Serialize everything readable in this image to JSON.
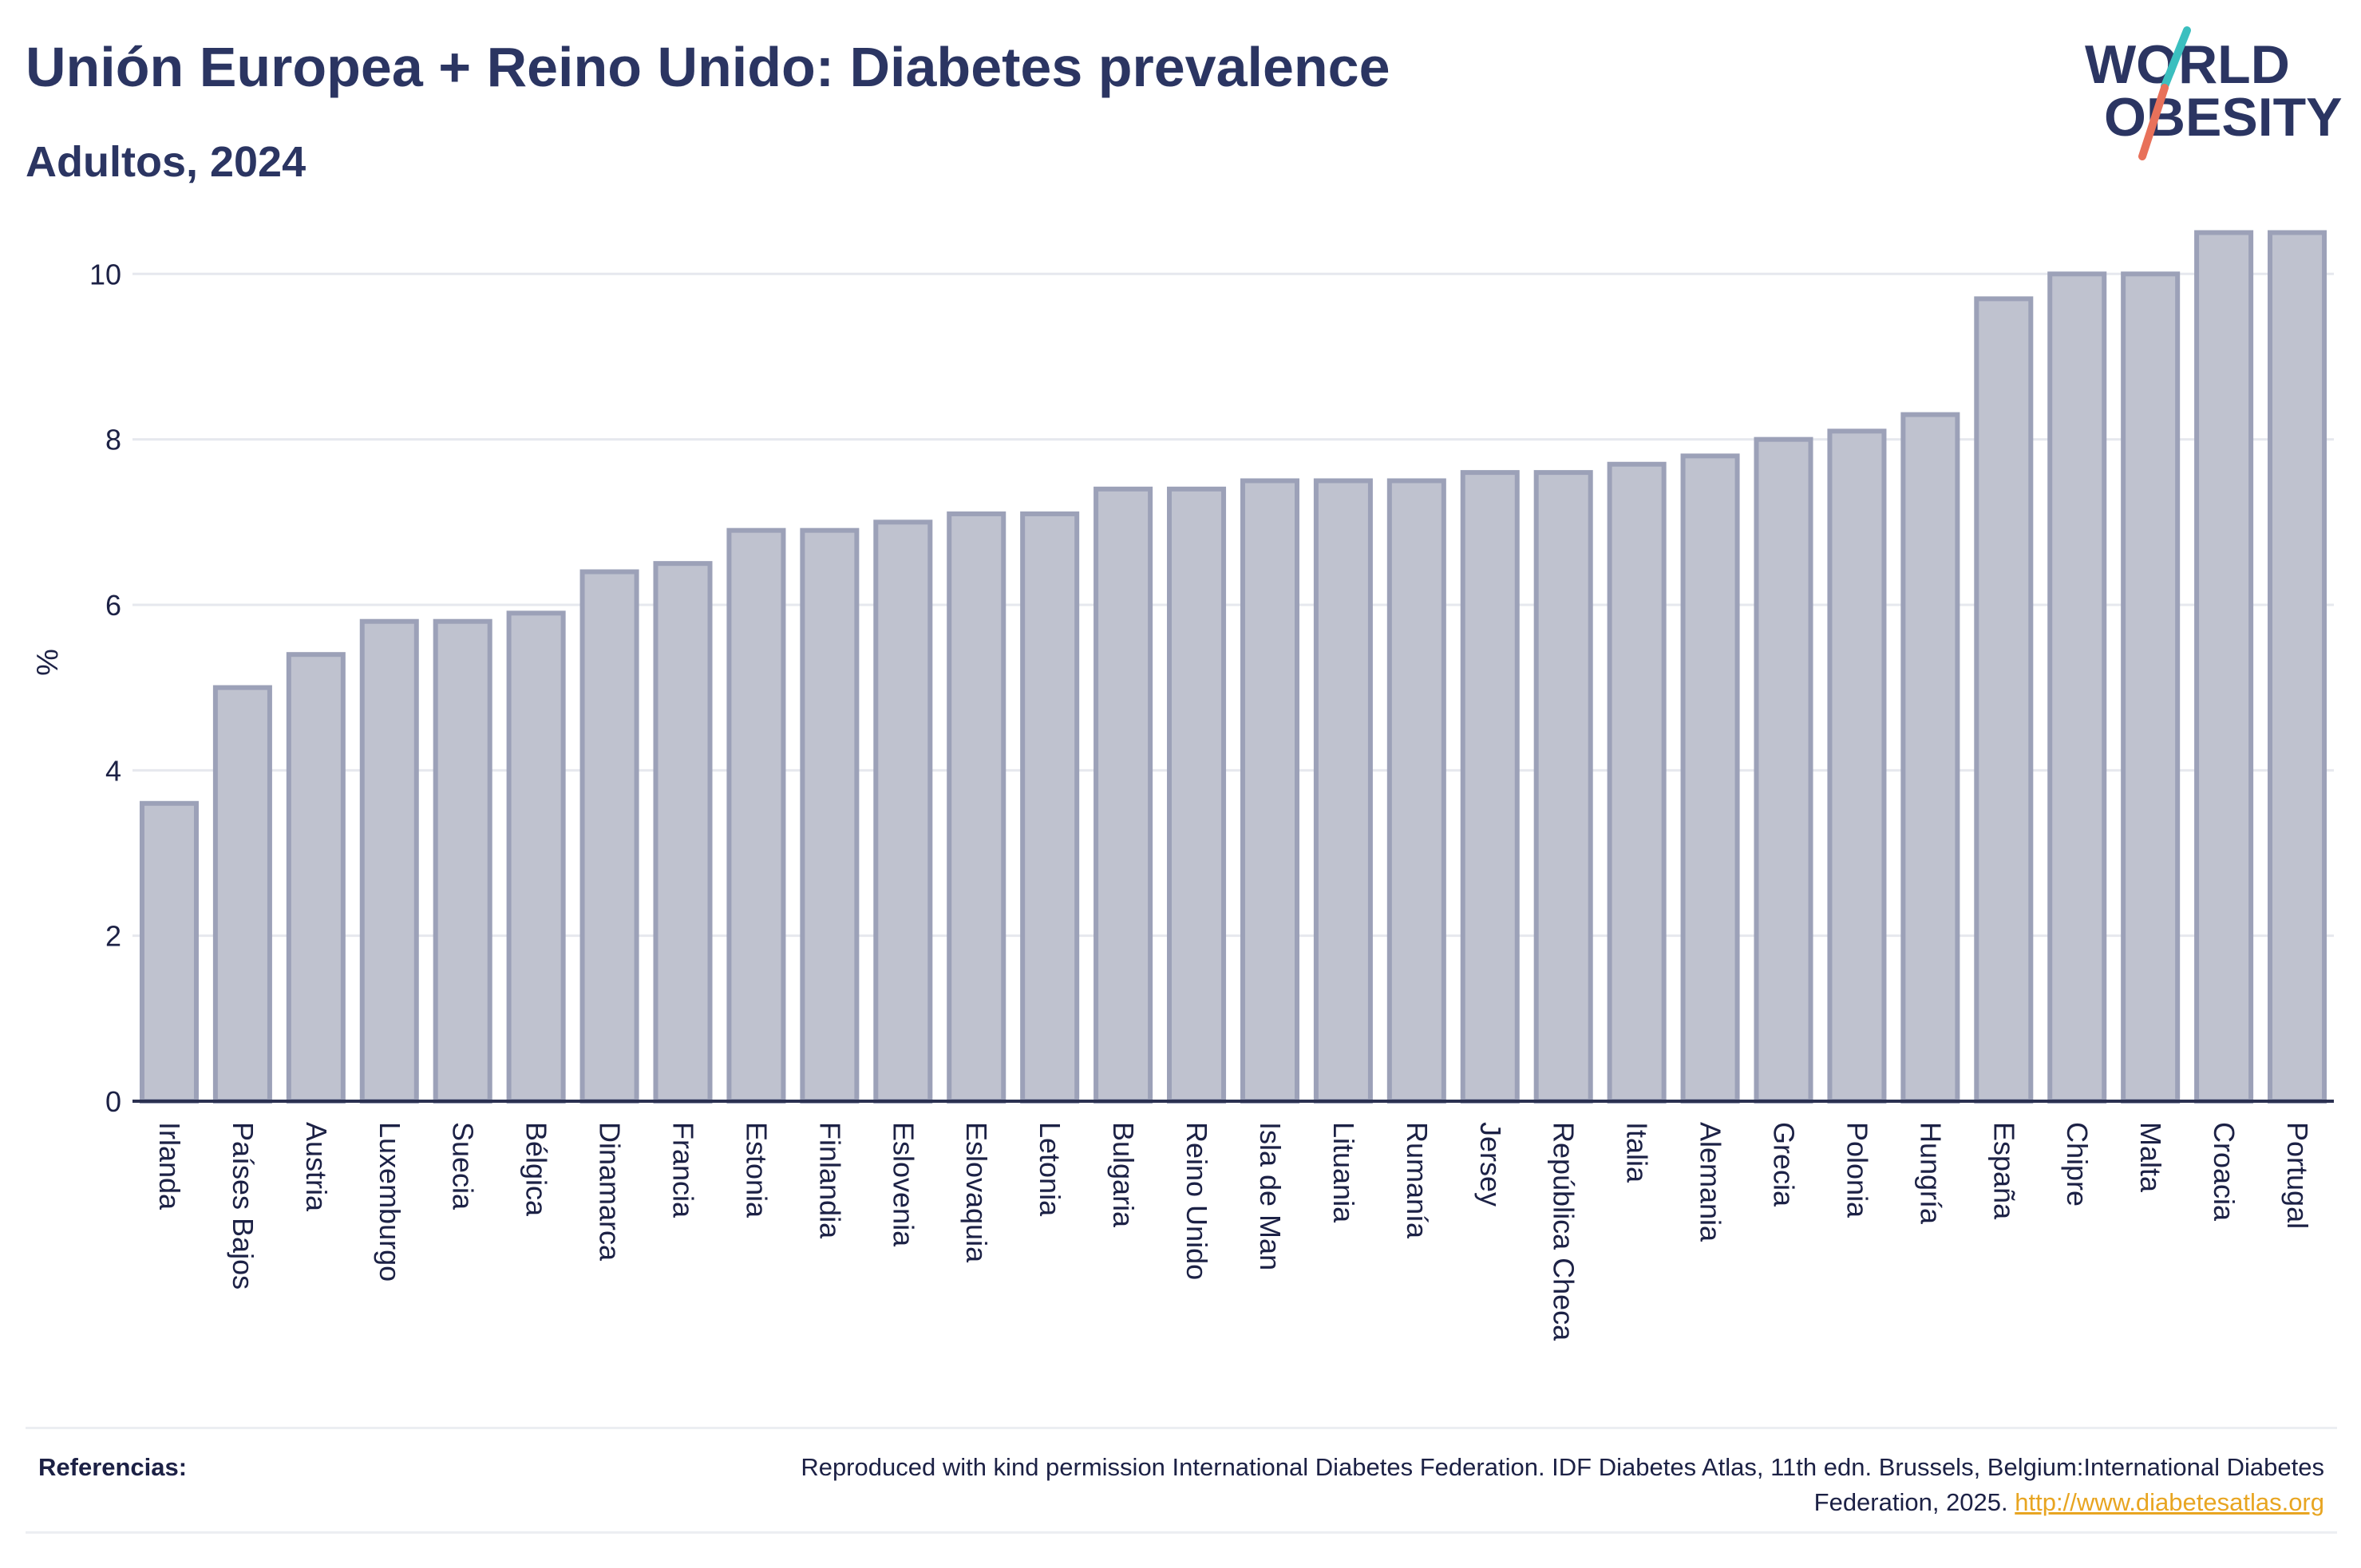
{
  "header": {
    "title": "Unión Europea + Reino Unido: Diabetes prevalence",
    "subtitle": "Adultos, 2024"
  },
  "logo": {
    "line1": "WORLD",
    "line2": "OBESITY",
    "colors": {
      "text": "#2b3562",
      "slash_teal": "#3bbfbf",
      "slash_coral": "#e8715a"
    }
  },
  "chart_data": {
    "type": "bar",
    "ylabel": "%",
    "xlabel": "",
    "ylim": [
      0,
      10.9
    ],
    "yticks": [
      0,
      2,
      4,
      6,
      8,
      10
    ],
    "grid": true,
    "categories": [
      "Irlanda",
      "Países Bajos",
      "Austria",
      "Luxemburgo",
      "Suecia",
      "Bélgica",
      "Dinamarca",
      "Francia",
      "Estonia",
      "Finlandia",
      "Eslovenia",
      "Eslovaquia",
      "Letonia",
      "Bulgaria",
      "Reino Unido",
      "Isla de Man",
      "Lituania",
      "Rumanía",
      "Jersey",
      "República Checa",
      "Italia",
      "Alemania",
      "Grecia",
      "Polonia",
      "Hungría",
      "España",
      "Chipre",
      "Malta",
      "Croacia",
      "Portugal"
    ],
    "values": [
      3.6,
      5.0,
      5.4,
      5.8,
      5.8,
      5.9,
      6.4,
      6.5,
      6.9,
      6.9,
      7.0,
      7.1,
      7.1,
      7.4,
      7.4,
      7.5,
      7.5,
      7.5,
      7.6,
      7.6,
      7.7,
      7.8,
      8.0,
      8.1,
      8.3,
      9.7,
      10.0,
      10.0,
      10.5,
      10.5
    ],
    "colors": {
      "bar_fill": "#bfc2cf",
      "bar_stroke": "#9ca1b8",
      "grid": "#e6e8ee",
      "axis": "#2b3151"
    }
  },
  "references": {
    "label": "Referencias:",
    "text": "Reproduced with kind permission International Diabetes Federation. IDF Diabetes Atlas, 11th edn. Brussels, Belgium:International Diabetes Federation, 2025.",
    "link": "http://www.diabetesatlas.org"
  }
}
